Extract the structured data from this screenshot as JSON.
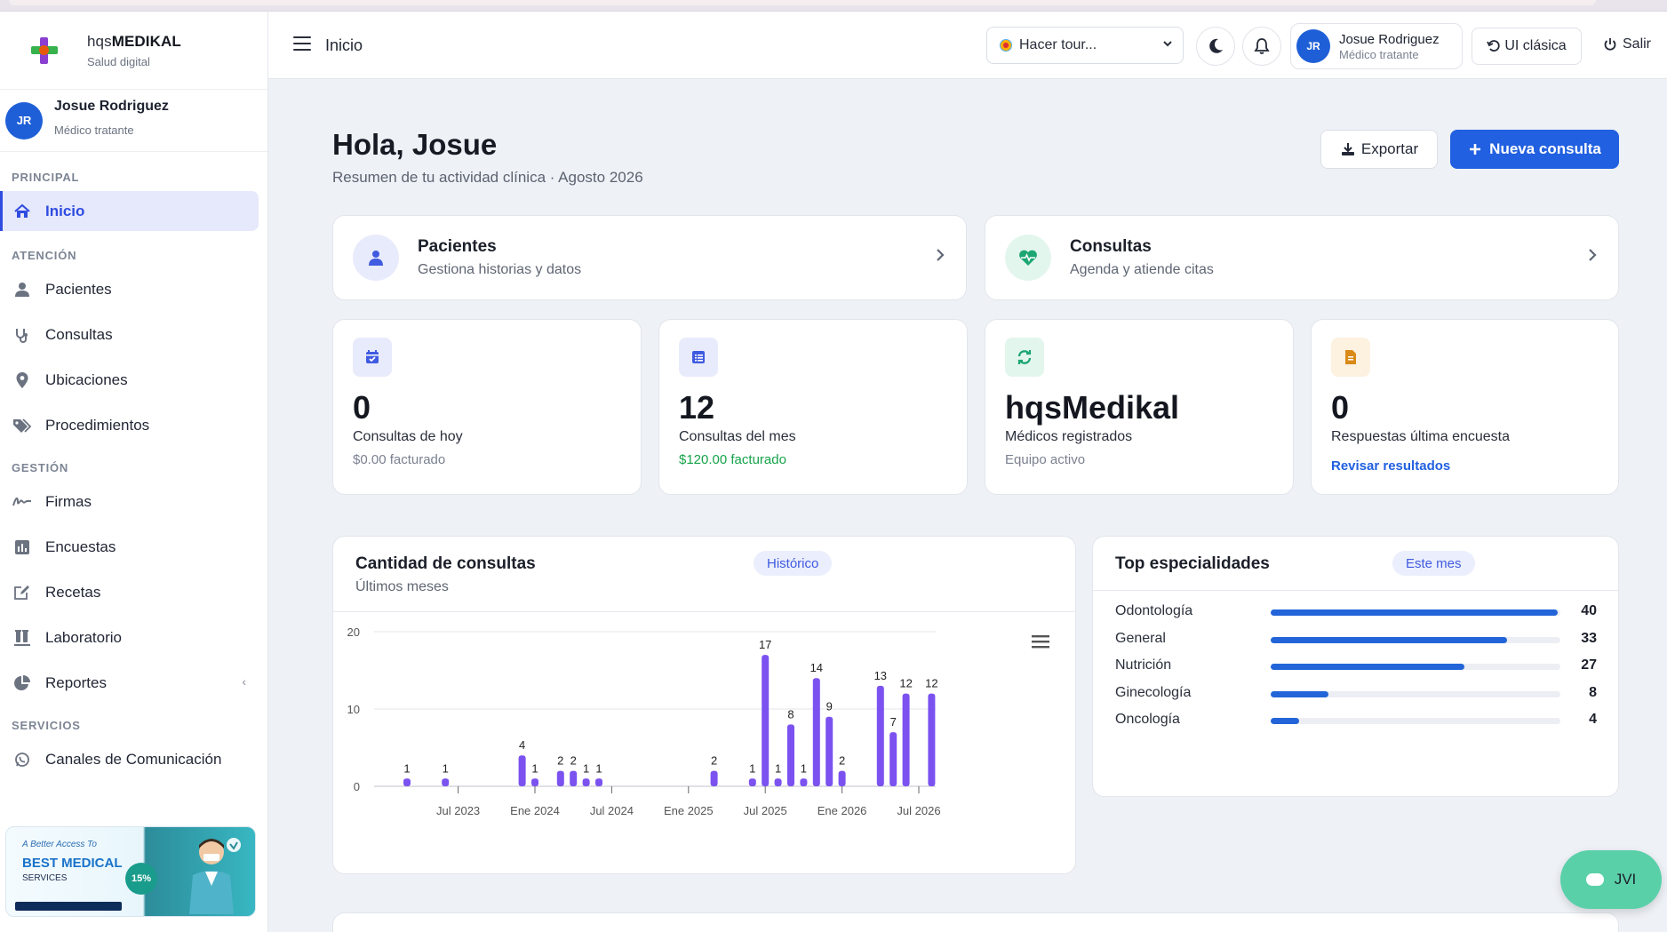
{
  "brand": {
    "name_light": "hqs",
    "name_bold": "MEDIKAL",
    "tagline": "Salud digital"
  },
  "sidebar_user": {
    "initials": "JR",
    "name": "Josue Rodriguez",
    "role": "Médico tratante"
  },
  "nav": {
    "sections": [
      {
        "label": "PRINCIPAL",
        "items": [
          {
            "label": "Inicio",
            "icon": "home-icon",
            "active": true
          }
        ]
      },
      {
        "label": "ATENCIÓN",
        "items": [
          {
            "label": "Pacientes",
            "icon": "user-icon"
          },
          {
            "label": "Consultas",
            "icon": "stethoscope-icon"
          },
          {
            "label": "Ubicaciones",
            "icon": "map-pin-icon"
          },
          {
            "label": "Procedimientos",
            "icon": "tags-icon"
          }
        ]
      },
      {
        "label": "GESTIÓN",
        "items": [
          {
            "label": "Firmas",
            "icon": "signature-icon"
          },
          {
            "label": "Encuestas",
            "icon": "bar-chart-icon"
          },
          {
            "label": "Recetas",
            "icon": "edit-icon"
          },
          {
            "label": "Laboratorio",
            "icon": "test-tubes-icon"
          },
          {
            "label": "Reportes",
            "icon": "pie-chart-icon"
          }
        ]
      },
      {
        "label": "SERVICIOS",
        "items": [
          {
            "label": "Canales de Comunicación",
            "icon": "whatsapp-icon"
          }
        ]
      }
    ]
  },
  "promo": {
    "line1": "A Better Access To",
    "line2": "BEST MEDICAL",
    "line3": "SERVICES",
    "badge": "15%"
  },
  "topbar": {
    "title": "Inicio",
    "tour_label": "Hacer tour...",
    "user": {
      "initials": "JR",
      "name": "Josue Rodriguez",
      "role": "Médico tratante"
    },
    "classic_label": "UI clásica",
    "logout_label": "Salir"
  },
  "page": {
    "greeting": "Hola, Josue",
    "subtitle": "Resumen de tu actividad clínica · Agosto 2026",
    "export_label": "Exportar",
    "new_label": "Nueva consulta"
  },
  "quick_links": [
    {
      "title": "Pacientes",
      "subtitle": "Gestiona historias y datos",
      "icon": "user-icon"
    },
    {
      "title": "Consultas",
      "subtitle": "Agenda y atiende citas",
      "icon": "heartbeat-icon"
    }
  ],
  "stats": [
    {
      "value": "0",
      "label": "Consultas de hoy",
      "sub": "$0.00 facturado",
      "icon": "calendar-check-icon",
      "sub_color": "#7a8190"
    },
    {
      "value": "12",
      "label": "Consultas del mes",
      "sub": "$120.00 facturado",
      "icon": "list-icon",
      "sub_color": "#16a34a"
    },
    {
      "value": "hqsMedikal",
      "label": "Médicos registrados",
      "sub": "Equipo activo",
      "icon": "sync-icon",
      "sub_color": "#7a8190"
    },
    {
      "value": "0",
      "label": "Respuestas última encuesta",
      "sub": "Revisar resultados",
      "icon": "file-icon",
      "sub_color": "#2160e0"
    }
  ],
  "consult_chart": {
    "title": "Cantidad de consultas",
    "subtitle": "Últimos meses",
    "tag": "Histórico"
  },
  "chart_data": {
    "type": "bar",
    "title": "Cantidad de consultas",
    "subtitle": "Últimos meses",
    "x_tick_labels": [
      "Jul 2023",
      "Ene 2024",
      "Jul 2024",
      "Ene 2025",
      "Jul 2025",
      "Ene 2026",
      "Jul 2026"
    ],
    "ylim": [
      0,
      20
    ],
    "y_ticks": [
      0,
      10,
      20
    ],
    "grid": true,
    "color": "#7b52f0",
    "points": [
      {
        "x": "Mar 2023",
        "y": 1
      },
      {
        "x": "Jun 2023",
        "y": 1
      },
      {
        "x": "Dic 2023",
        "y": 4
      },
      {
        "x": "Ene 2024",
        "y": 1
      },
      {
        "x": "Mar 2024",
        "y": 2
      },
      {
        "x": "Abr 2024",
        "y": 2
      },
      {
        "x": "May 2024",
        "y": 1
      },
      {
        "x": "Jun 2024",
        "y": 1
      },
      {
        "x": "Mar 2025",
        "y": 2
      },
      {
        "x": "Jun 2025",
        "y": 1
      },
      {
        "x": "Jul 2025",
        "y": 17
      },
      {
        "x": "Ago 2025",
        "y": 1
      },
      {
        "x": "Sep 2025",
        "y": 8
      },
      {
        "x": "Oct 2025",
        "y": 1
      },
      {
        "x": "Nov 2025",
        "y": 14
      },
      {
        "x": "Dic 2025",
        "y": 9
      },
      {
        "x": "Ene 2026",
        "y": 2
      },
      {
        "x": "Abr 2026",
        "y": 13
      },
      {
        "x": "May 2026",
        "y": 7
      },
      {
        "x": "Jun 2026",
        "y": 12
      },
      {
        "x": "Ago 2026",
        "y": 12
      }
    ]
  },
  "specialties": {
    "title": "Top especialidades",
    "tag": "Este mes",
    "items": [
      {
        "name": "Odontología",
        "count": 40
      },
      {
        "name": "General",
        "count": 33
      },
      {
        "name": "Nutrición",
        "count": 27
      },
      {
        "name": "Ginecología",
        "count": 8
      },
      {
        "name": "Oncología",
        "count": 4
      }
    ]
  },
  "chat": {
    "label": "JVI"
  }
}
